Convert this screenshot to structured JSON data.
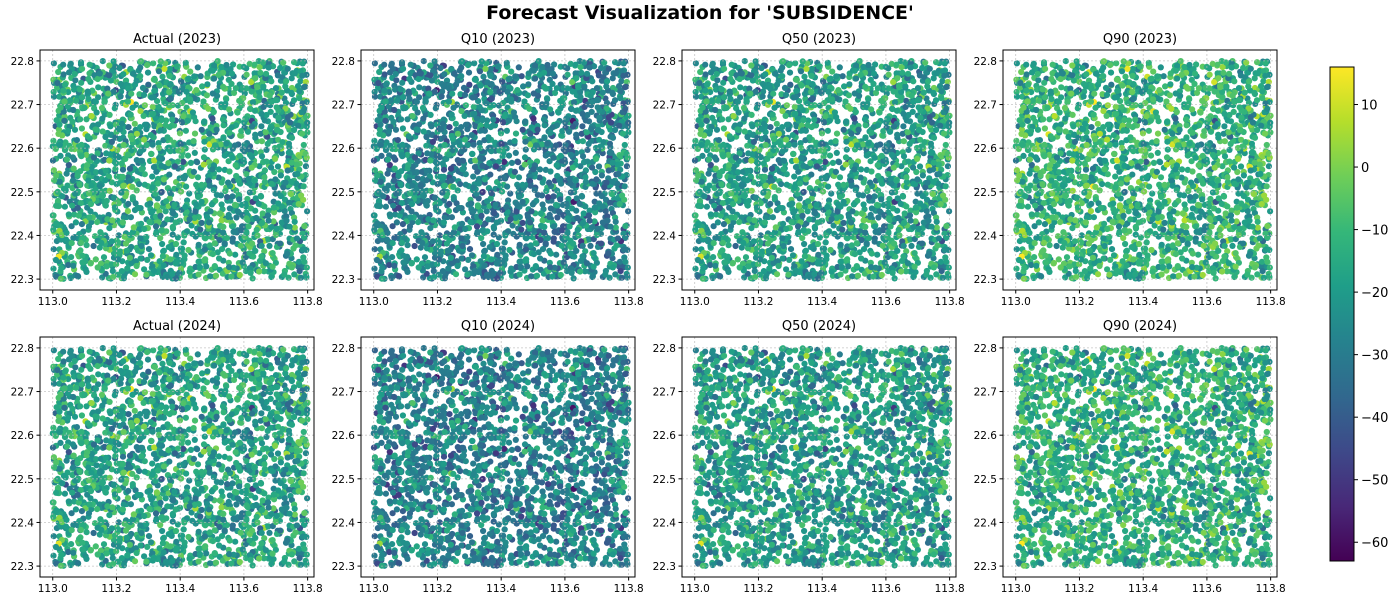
{
  "figure": {
    "title": "Forecast Visualization for 'SUBSIDENCE'"
  },
  "colors": {
    "colormap": "viridis",
    "viridis_stops": [
      "#440154",
      "#482878",
      "#3e4989",
      "#31688e",
      "#26828e",
      "#1f9e89",
      "#35b779",
      "#6ece58",
      "#b5de2b",
      "#fde725"
    ]
  },
  "chart_data": {
    "type": "scatter",
    "marker": "filled circle",
    "color_variable": "SUBSIDENCE",
    "grid": true,
    "layout": "2 rows x 4 columns",
    "x": {
      "ticks": [
        113.0,
        113.2,
        113.4,
        113.6,
        113.8
      ],
      "tick_labels": [
        "113.0",
        "113.2",
        "113.4",
        "113.6",
        "113.8"
      ],
      "lim": [
        112.96,
        113.82
      ],
      "point_range": [
        113.0,
        113.8
      ]
    },
    "y": {
      "ticks": [
        22.3,
        22.4,
        22.5,
        22.6,
        22.7,
        22.8
      ],
      "tick_labels": [
        "22.3",
        "22.4",
        "22.5",
        "22.6",
        "22.7",
        "22.8"
      ],
      "lim": [
        22.275,
        22.825
      ],
      "point_range": [
        22.3,
        22.8
      ]
    },
    "colorbar": {
      "range": [
        -63,
        16
      ],
      "ticks": [
        10,
        0,
        -10,
        -20,
        -30,
        -40,
        -50,
        -60
      ],
      "tick_labels": [
        "10",
        "0",
        "−10",
        "−20",
        "−30",
        "−40",
        "−50",
        "−60"
      ]
    },
    "panels": [
      {
        "title": "Actual (2023)",
        "mean": -17,
        "spread": 9
      },
      {
        "title": "Q10 (2023)",
        "mean": -27,
        "spread": 9
      },
      {
        "title": "Q50 (2023)",
        "mean": -19,
        "spread": 9
      },
      {
        "title": "Q90 (2023)",
        "mean": -13,
        "spread": 9
      },
      {
        "title": "Actual (2024)",
        "mean": -18,
        "spread": 9
      },
      {
        "title": "Q10 (2024)",
        "mean": -28,
        "spread": 9
      },
      {
        "title": "Q50 (2024)",
        "mean": -20,
        "spread": 9
      },
      {
        "title": "Q90 (2024)",
        "mean": -14,
        "spread": 9
      }
    ]
  }
}
